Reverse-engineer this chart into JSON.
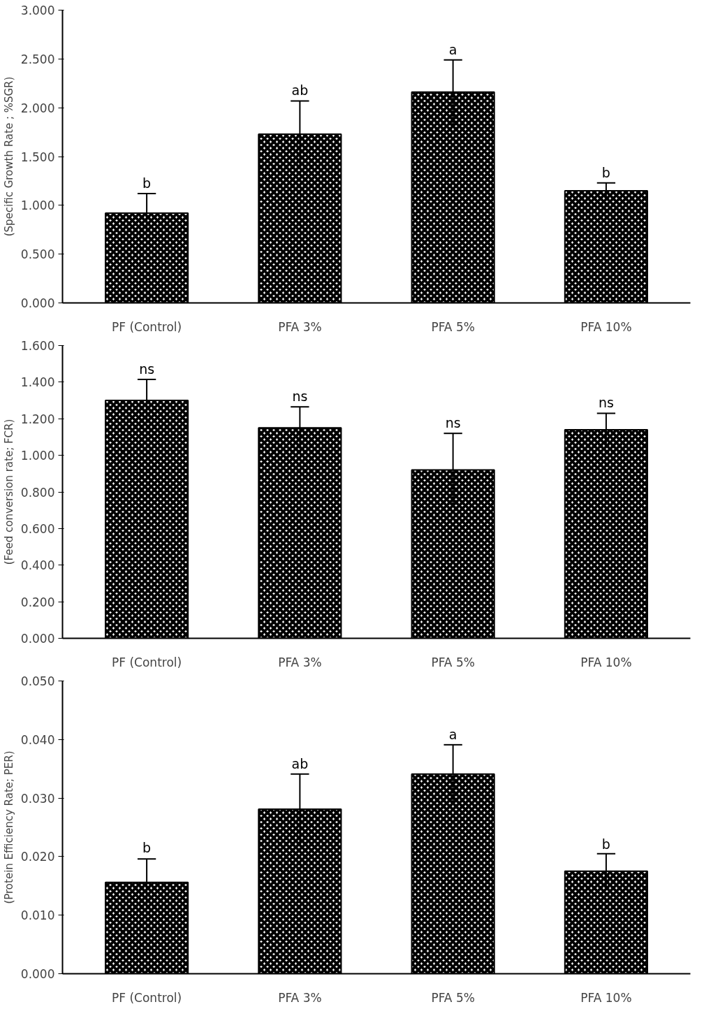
{
  "chart_data": [
    {
      "type": "bar",
      "ylabel": "(Specific Growth Rate ; %SGR)",
      "categories": [
        "PF (Control)",
        "PFA 3%",
        "PFA 5%",
        "PFA 10%"
      ],
      "series": [
        {
          "color": "#000000",
          "values": [
            0.92,
            1.73,
            2.16,
            1.15
          ],
          "errors": [
            0.2,
            0.34,
            0.33,
            0.08
          ]
        }
      ],
      "ylim": [
        0,
        3
      ],
      "yticks": [
        {
          "value": 0,
          "label": "0.000"
        },
        {
          "value": 0.5,
          "label": "0.500"
        },
        {
          "value": 1,
          "label": "1.000"
        },
        {
          "value": 1.5,
          "label": "1.500"
        },
        {
          "value": 2,
          "label": "2.000"
        },
        {
          "value": 2.5,
          "label": "2.500"
        },
        {
          "value": 3,
          "label": "3.000"
        }
      ],
      "annotations": [
        {
          "text": "b",
          "x": "PF (Control)",
          "y": 1.12
        },
        {
          "text": "ab",
          "x": "PFA 3%",
          "y": 2.07
        },
        {
          "text": "a",
          "x": "PFA 5%",
          "y": 2.49
        },
        {
          "text": "b",
          "x": "PFA 10%",
          "y": 1.23
        }
      ],
      "grid": false
    },
    {
      "type": "bar",
      "ylabel": "(Feed conversion rate; FCR)",
      "categories": [
        "PF (Control)",
        "PFA 3%",
        "PFA 5%",
        "PFA 10%"
      ],
      "series": [
        {
          "color": "#000000",
          "values": [
            1.3,
            1.15,
            0.92,
            1.14
          ],
          "errors": [
            0.115,
            0.115,
            0.2,
            0.09
          ]
        }
      ],
      "ylim": [
        0,
        1.6
      ],
      "yticks": [
        {
          "value": 0,
          "label": "0.000"
        },
        {
          "value": 0.2,
          "label": "0.200"
        },
        {
          "value": 0.4,
          "label": "0.400"
        },
        {
          "value": 0.6,
          "label": "0.600"
        },
        {
          "value": 0.8,
          "label": "0.800"
        },
        {
          "value": 1,
          "label": "1.000"
        },
        {
          "value": 1.2,
          "label": "1.200"
        },
        {
          "value": 1.4,
          "label": "1.400"
        },
        {
          "value": 1.6,
          "label": "1.600"
        }
      ],
      "annotations": [
        {
          "text": "ns",
          "x": "PF (Control)",
          "y": 1.415
        },
        {
          "text": "ns",
          "x": "PFA 3%",
          "y": 1.265
        },
        {
          "text": "ns",
          "x": "PFA 5%",
          "y": 1.12
        },
        {
          "text": "ns",
          "x": "PFA 10%",
          "y": 1.23
        }
      ],
      "grid": false
    },
    {
      "type": "bar",
      "ylabel": "(Protein Efficiency Rate; PER)",
      "categories": [
        "PF (Control)",
        "PFA 3%",
        "PFA 5%",
        "PFA 10%"
      ],
      "series": [
        {
          "color": "#000000",
          "values": [
            0.0156,
            0.0281,
            0.0341,
            0.0175
          ],
          "errors": [
            0.004,
            0.006,
            0.005,
            0.003
          ]
        }
      ],
      "ylim": [
        0,
        0.05
      ],
      "yticks": [
        {
          "value": 0,
          "label": "0.000"
        },
        {
          "value": 0.01,
          "label": "0.010"
        },
        {
          "value": 0.02,
          "label": "0.020"
        },
        {
          "value": 0.03,
          "label": "0.030"
        },
        {
          "value": 0.04,
          "label": "0.040"
        },
        {
          "value": 0.05,
          "label": "0.050"
        }
      ],
      "annotations": [
        {
          "text": "b",
          "x": "PF (Control)",
          "y": 0.0197
        },
        {
          "text": "ab",
          "x": "PFA 3%",
          "y": 0.0341
        },
        {
          "text": "a",
          "x": "PFA 5%",
          "y": 0.0391
        },
        {
          "text": "b",
          "x": "PFA 10%",
          "y": 0.0204
        }
      ],
      "grid": false
    }
  ]
}
